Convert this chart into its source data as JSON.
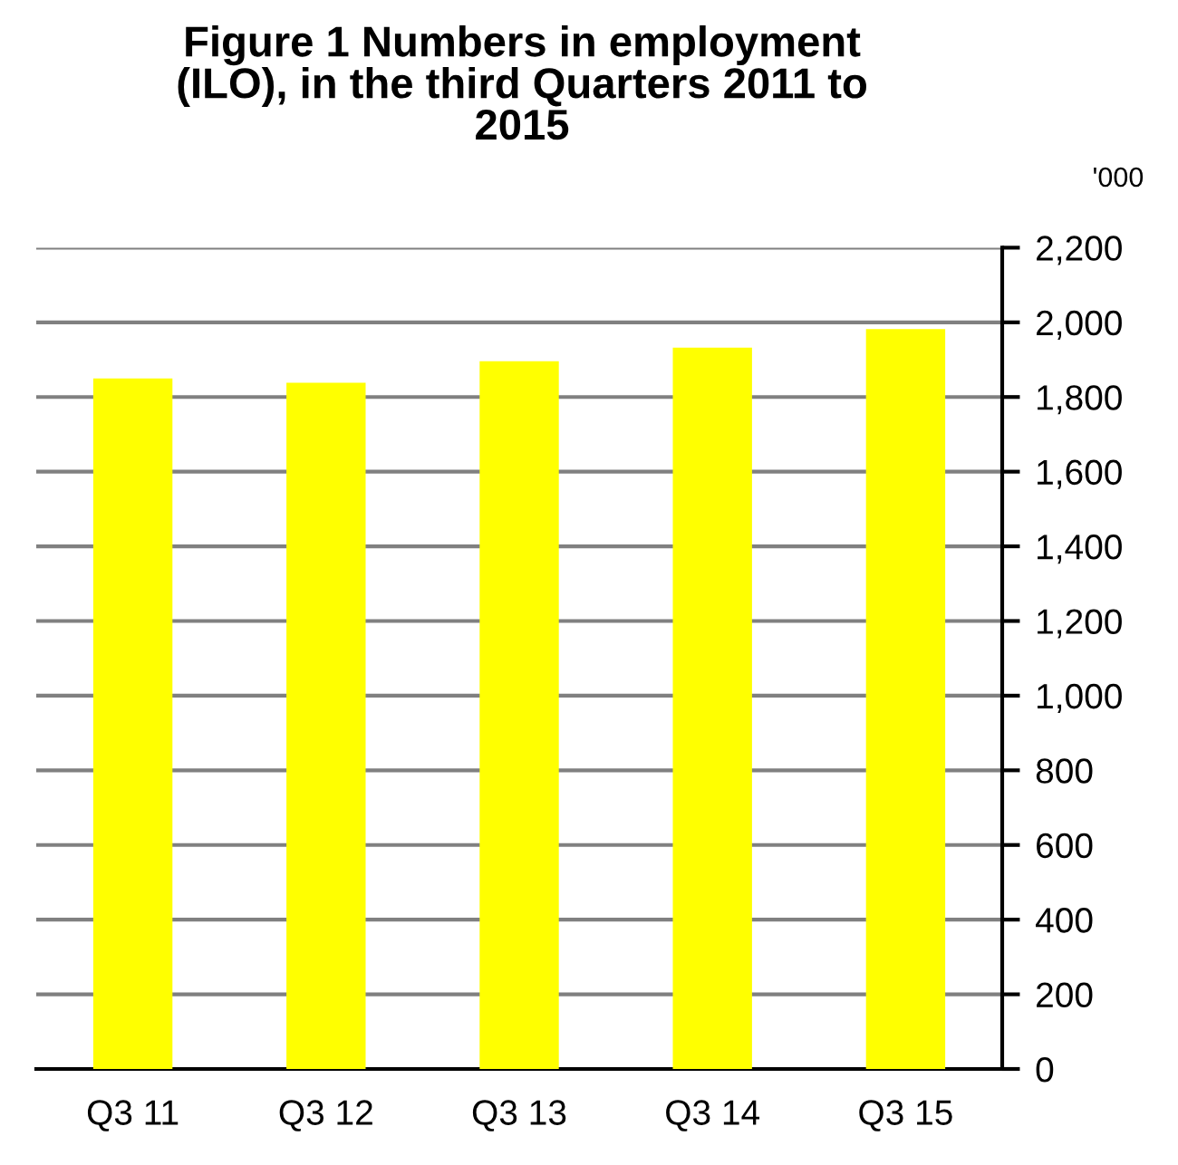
{
  "chart_data": {
    "type": "bar",
    "title": "Figure 1 Numbers in employment\n(ILO), in the third Quarters 2011 to\n2015",
    "ylabel": "'000",
    "categories": [
      "Q3 11",
      "Q3 12",
      "Q3 13",
      "Q3 14",
      "Q3 15"
    ],
    "values": [
      1850,
      1838,
      1896,
      1932,
      1982
    ],
    "color": "#ffff00",
    "ylim": [
      0,
      2200
    ],
    "yticks": [
      0,
      {
        "value": 200,
        "label": "200"
      },
      {
        "value": 400,
        "label": "400"
      },
      {
        "value": 600,
        "label": "600"
      },
      {
        "value": 800,
        "label": "800"
      },
      {
        "value": 1000,
        "label": "1,000"
      },
      {
        "value": 1200,
        "label": "1,200"
      },
      {
        "value": 1400,
        "label": "1,400"
      },
      {
        "value": 1600,
        "label": "1,600"
      },
      {
        "value": 1800,
        "label": "1,800"
      },
      {
        "value": 2000,
        "label": "2,000"
      },
      {
        "value": 2200,
        "label": "2,200"
      }
    ],
    "grid": "y",
    "legend": false
  }
}
